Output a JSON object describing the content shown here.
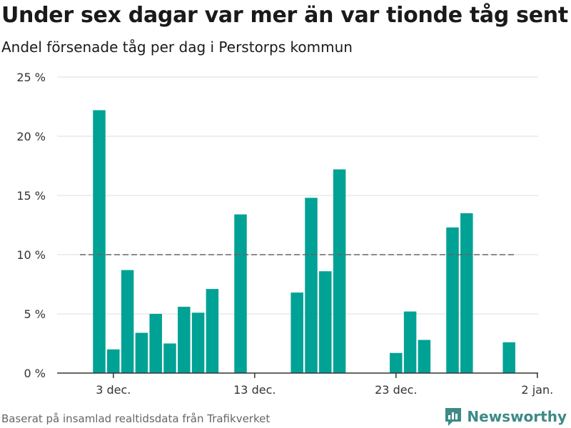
{
  "header": {
    "title": "Under sex dagar var mer än var tionde tåg sent",
    "subtitle": "Andel försenade tåg per dag i Perstorps kommun"
  },
  "footer": {
    "source": "Baserat på insamlad realtidsdata från Trafikverket",
    "brand": "Newsworthy"
  },
  "colors": {
    "bar": "#00a295",
    "reference": "#666666",
    "grid": "#dddddd",
    "brand": "#3d8a86"
  },
  "chart_data": {
    "type": "bar",
    "title": "Under sex dagar var mer än var tionde tåg sent",
    "subtitle": "Andel försenade tåg per dag i Perstorps kommun",
    "xlabel": "",
    "ylabel": "",
    "y_unit": "%",
    "ylim": [
      0,
      25
    ],
    "yticks": [
      0,
      5,
      10,
      15,
      20,
      25
    ],
    "ytick_labels": [
      "0 %",
      "5 %",
      "10 %",
      "15 %",
      "20 %",
      "25 %"
    ],
    "xticks": [
      "2019-12-03",
      "2019-12-13",
      "2019-12-23",
      "2020-01-02"
    ],
    "xtick_labels": [
      "3 dec.",
      "13 dec.",
      "23 dec.",
      "2 jan."
    ],
    "grid": true,
    "reference_line": {
      "value": 10,
      "style": "dashed"
    },
    "dates": [
      "2019-12-02",
      "2019-12-03",
      "2019-12-04",
      "2019-12-05",
      "2019-12-06",
      "2019-12-07",
      "2019-12-08",
      "2019-12-09",
      "2019-12-10",
      "2019-12-11",
      "2019-12-12",
      "2019-12-13",
      "2019-12-14",
      "2019-12-15",
      "2019-12-16",
      "2019-12-17",
      "2019-12-18",
      "2019-12-19",
      "2019-12-20",
      "2019-12-21",
      "2019-12-22",
      "2019-12-23",
      "2019-12-24",
      "2019-12-25",
      "2019-12-26",
      "2019-12-27",
      "2019-12-28",
      "2019-12-29",
      "2019-12-30",
      "2019-12-31"
    ],
    "values": [
      22.2,
      2.0,
      8.7,
      3.4,
      5.0,
      2.5,
      5.6,
      5.1,
      7.1,
      0,
      13.4,
      0,
      0,
      0,
      6.8,
      14.8,
      8.6,
      17.2,
      0,
      0,
      0,
      1.7,
      5.2,
      2.8,
      0,
      12.3,
      13.5,
      0,
      0,
      2.6
    ]
  }
}
